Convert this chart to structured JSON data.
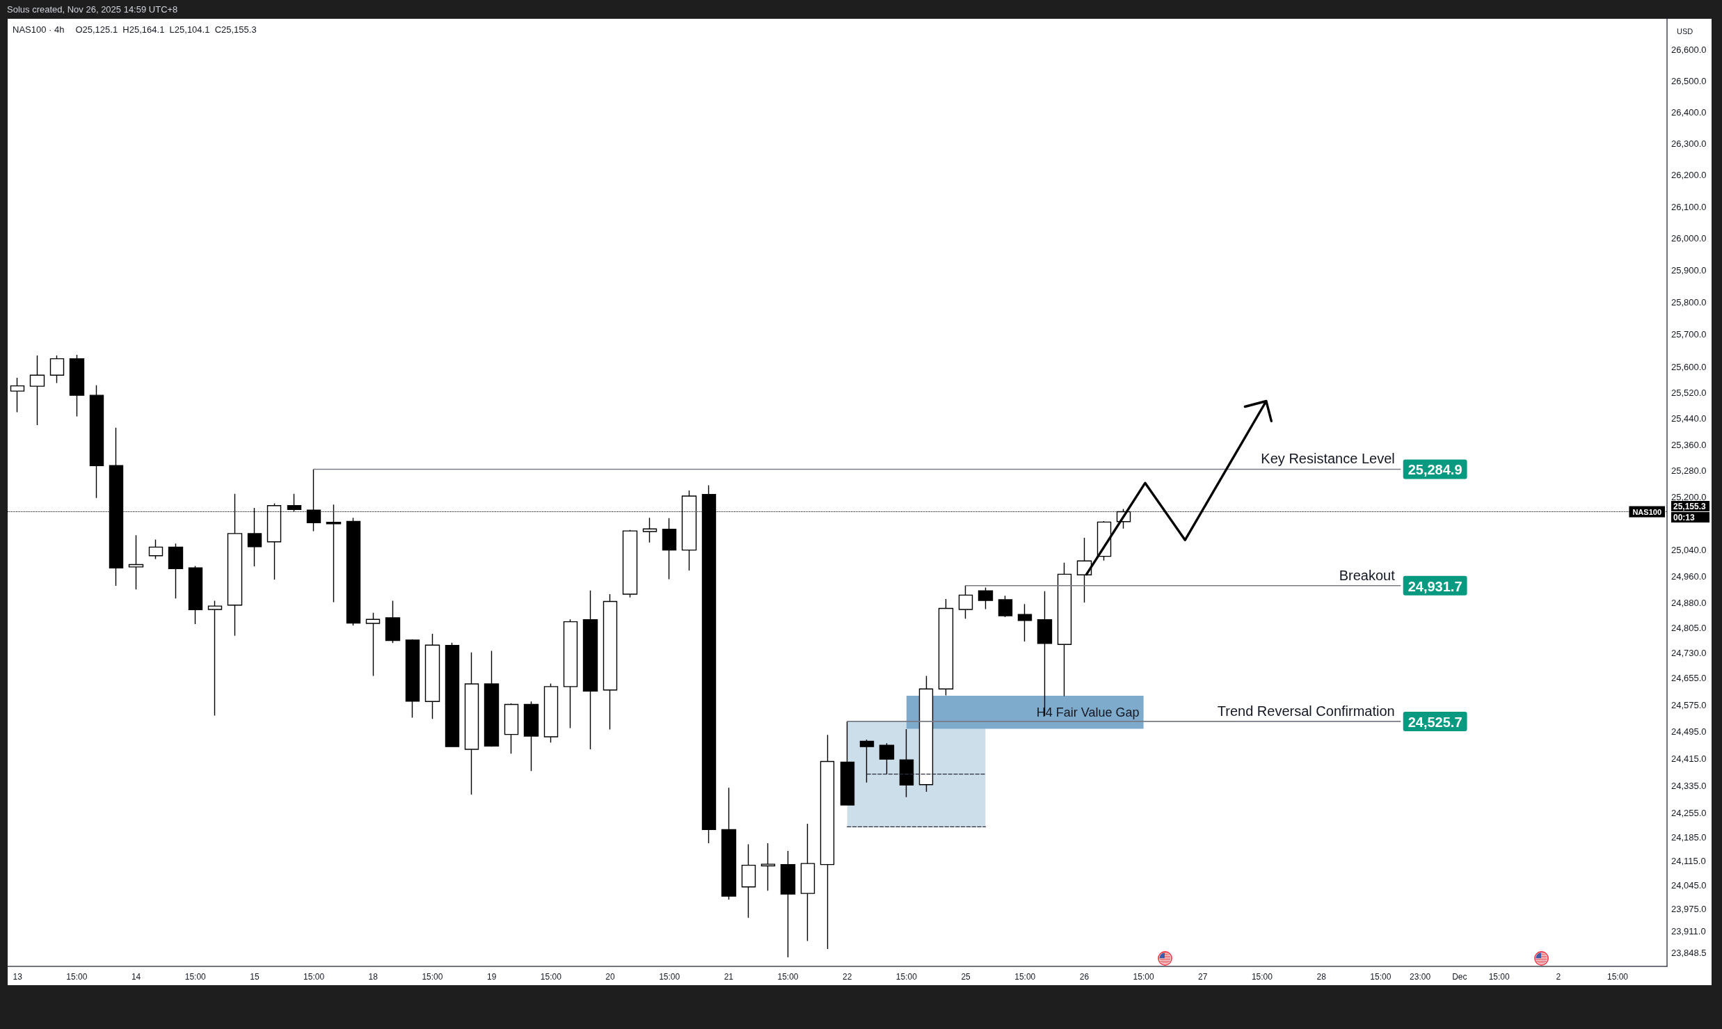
{
  "chart_data": {
    "type": "candlestick",
    "title": "NAS100 · 4h",
    "subtitle": "O25,125.1  H25,164.1  L25,104.1  C25,155.3",
    "ylabel": "USD",
    "annotations": [
      "Solus created, Nov 26, 2025 14:59 UTC+8",
      "H4 Fair Value Gap"
    ],
    "categories": [
      "13",
      null,
      null,
      "15:00",
      null,
      null,
      "14",
      null,
      null,
      "15:00",
      null,
      null,
      "15",
      null,
      null,
      "15:00",
      null,
      null,
      "18",
      null,
      null,
      "15:00",
      null,
      null,
      "19",
      null,
      null,
      "15:00",
      null,
      null,
      "20",
      null,
      null,
      "15:00",
      null,
      null,
      "21",
      null,
      null,
      "15:00",
      null,
      null,
      "22",
      null,
      null,
      "15:00",
      null,
      null,
      "25",
      null,
      null,
      "15:00",
      null,
      null,
      "26",
      null,
      null,
      "15:00",
      null,
      null,
      "27",
      null,
      null,
      "15:00",
      null,
      null,
      "28",
      null,
      null,
      "15:00",
      null,
      "23:00",
      null,
      "Dec",
      null,
      "15:00",
      null,
      null,
      "2",
      null,
      null,
      "15:00",
      null,
      null
    ],
    "ohlc": [
      [
        25525,
        25566,
        25460,
        25541
      ],
      [
        25540,
        25635,
        25420,
        25574
      ],
      [
        25574,
        25635,
        25550,
        25625
      ],
      [
        25625,
        25637,
        25447,
        25512
      ],
      [
        25512,
        25543,
        25197,
        25296
      ],
      [
        25296,
        25412,
        24931,
        24985
      ],
      [
        24988,
        25084,
        24920,
        24995
      ],
      [
        25022,
        25071,
        25012,
        25048
      ],
      [
        25048,
        25059,
        24893,
        24983
      ],
      [
        24985,
        24991,
        24816,
        24859
      ],
      [
        24860,
        24886,
        24543,
        24870
      ],
      [
        24873,
        25210,
        24781,
        25089
      ],
      [
        25089,
        25167,
        24990,
        25049
      ],
      [
        25064,
        25181,
        24950,
        25174
      ],
      [
        25174,
        25210,
        25156,
        25162
      ],
      [
        25160,
        25284.9,
        25096,
        25122
      ],
      [
        25123,
        25177,
        24882,
        25119
      ],
      [
        25126,
        25137,
        24812,
        24819
      ],
      [
        24818,
        24850,
        24661,
        24830
      ],
      [
        24835,
        24886,
        24759,
        24767
      ],
      [
        24768,
        24770,
        24537,
        24586
      ],
      [
        24585,
        24787,
        24533,
        24753
      ],
      [
        24752,
        24760,
        24451,
        24451
      ],
      [
        24443,
        24731,
        24310,
        24637
      ],
      [
        24637,
        24736,
        24451,
        24453
      ],
      [
        24487,
        24579,
        24430,
        24576
      ],
      [
        24576,
        24585,
        24379,
        24482
      ],
      [
        24480,
        24638,
        24463,
        24629
      ],
      [
        24629,
        24830,
        24506,
        24823
      ],
      [
        24829,
        24917,
        24443,
        24616
      ],
      [
        24619,
        24906,
        24502,
        24884
      ],
      [
        24906,
        25100,
        24896,
        25097
      ],
      [
        25095,
        25137,
        25062,
        25103
      ],
      [
        25102,
        25136,
        24951,
        25039
      ],
      [
        25039,
        25220,
        24977,
        25203
      ],
      [
        25208,
        25236,
        24167,
        24207
      ],
      [
        24207,
        24330,
        24003,
        24013
      ],
      [
        24040,
        24164,
        23950,
        24103
      ],
      [
        24101,
        24167,
        24029,
        24106
      ],
      [
        24105,
        24145,
        23836,
        24019
      ],
      [
        24021,
        24224,
        23883,
        24108
      ],
      [
        24105,
        24486,
        23860,
        24407
      ],
      [
        24405,
        24525.7,
        24279,
        24279
      ],
      [
        24467,
        24472,
        24345,
        24451
      ],
      [
        24455,
        24461,
        24370,
        24414
      ],
      [
        24412,
        24503,
        24302,
        24338
      ],
      [
        24339,
        24661,
        24318,
        24622
      ],
      [
        24622,
        24891,
        24603,
        24863
      ],
      [
        24860,
        24931.7,
        24832,
        24903
      ],
      [
        24916,
        24926,
        24861,
        24887
      ],
      [
        24889,
        24901,
        24837,
        24841
      ],
      [
        24845,
        24876,
        24764,
        24827
      ],
      [
        24829,
        24915,
        24542,
        24758
      ],
      [
        24755,
        25001,
        24601,
        24966
      ],
      [
        24964,
        25076,
        24881,
        25006
      ],
      [
        25020,
        25127,
        25007,
        25124
      ],
      [
        25125.1,
        25164.1,
        25104.1,
        25155.3
      ],
      null,
      null,
      null,
      null,
      null,
      null,
      null,
      null,
      null,
      null,
      null,
      null,
      null,
      null,
      null,
      null,
      null,
      null,
      null,
      null,
      null,
      null,
      null,
      null,
      null,
      null,
      null
    ],
    "color": "#000000",
    "colors": [
      "#ffffff",
      "#ffffff",
      "#ffffff",
      "#000000",
      "#000000",
      "#000000",
      "#ffffff",
      "#ffffff",
      "#000000",
      "#000000",
      "#ffffff",
      "#ffffff",
      "#000000",
      "#ffffff",
      "#000000",
      "#000000",
      "#000000",
      "#000000",
      "#ffffff",
      "#000000",
      "#000000",
      "#ffffff",
      "#000000",
      "#ffffff",
      "#000000",
      "#ffffff",
      "#000000",
      "#ffffff",
      "#ffffff",
      "#000000",
      "#ffffff",
      "#ffffff",
      "#ffffff",
      "#000000",
      "#ffffff",
      "#000000",
      "#000000",
      "#ffffff",
      "#ffffff",
      "#000000",
      "#ffffff",
      "#ffffff",
      "#000000",
      "#000000",
      "#000000",
      "#000000",
      "#ffffff",
      "#ffffff",
      "#ffffff",
      "#000000",
      "#000000",
      "#000000",
      "#000000",
      "#ffffff",
      "#ffffff",
      "#ffffff",
      "#ffffff",
      null,
      null,
      null,
      null,
      null,
      null,
      null,
      null,
      null,
      null,
      null,
      null,
      null,
      null,
      null,
      null,
      null,
      null,
      null,
      null,
      null,
      null,
      null,
      null,
      null,
      null,
      null
    ],
    "series": [
      {
        "type": "line",
        "color": "#cddeeb",
        "values": [
          null,
          null,
          null,
          null,
          null,
          null,
          null,
          null,
          null,
          null,
          null,
          null,
          null,
          null,
          null,
          null,
          null,
          null,
          null,
          null,
          null,
          null,
          null,
          null,
          null,
          null,
          null,
          null,
          null,
          null,
          null,
          null,
          null,
          null,
          null,
          null,
          null,
          null,
          null,
          null,
          null,
          null,
          null,
          null,
          null,
          null,
          null,
          null,
          null,
          null,
          null,
          null,
          null,
          null,
          null,
          null,
          null,
          null,
          null,
          null,
          null,
          null,
          null,
          null,
          null,
          null,
          null,
          null,
          null,
          null,
          null,
          null,
          null,
          null,
          null,
          null,
          null,
          null,
          null,
          null,
          null,
          null,
          null,
          null
        ],
        "lower": [
          null,
          null,
          null,
          null,
          null,
          null,
          null,
          null,
          null,
          null,
          null,
          null,
          null,
          null,
          null,
          null,
          null,
          null,
          null,
          null,
          null,
          null,
          null,
          null,
          null,
          null,
          null,
          null,
          null,
          null,
          null,
          null,
          null,
          null,
          null,
          null,
          null,
          null,
          null,
          null,
          null,
          null,
          24215,
          24215,
          24215,
          24215,
          24215,
          24215,
          24215,
          24215,
          null,
          null,
          null,
          null,
          null,
          null,
          null,
          null,
          null,
          null,
          null,
          null,
          null,
          null,
          null,
          null,
          null,
          null,
          null,
          null,
          null,
          null,
          null,
          null,
          null,
          null,
          null,
          null,
          null,
          null,
          null,
          null,
          null,
          null
        ],
        "upper": [
          null,
          null,
          null,
          null,
          null,
          null,
          null,
          null,
          null,
          null,
          null,
          null,
          null,
          null,
          null,
          null,
          null,
          null,
          null,
          null,
          null,
          null,
          null,
          null,
          null,
          null,
          null,
          null,
          null,
          null,
          null,
          null,
          null,
          null,
          null,
          null,
          null,
          null,
          null,
          null,
          null,
          null,
          24525.7,
          24525.7,
          24525.7,
          24525.7,
          24525.7,
          24525.7,
          24525.7,
          24525.7,
          null,
          null,
          null,
          null,
          null,
          null,
          null,
          null,
          null,
          null,
          null,
          null,
          null,
          null,
          null,
          null,
          null,
          null,
          null,
          null,
          null,
          null,
          null,
          null,
          null,
          null,
          null,
          null,
          null,
          null,
          null,
          null,
          null,
          null
        ]
      },
      {
        "type": "line",
        "color": "#7eabcc",
        "values": [
          null,
          null,
          null,
          null,
          null,
          null,
          null,
          null,
          null,
          null,
          null,
          null,
          null,
          null,
          null,
          null,
          null,
          null,
          null,
          null,
          null,
          null,
          null,
          null,
          null,
          null,
          null,
          null,
          null,
          null,
          null,
          null,
          null,
          null,
          null,
          null,
          null,
          null,
          null,
          null,
          null,
          null,
          null,
          null,
          null,
          null,
          null,
          null,
          null,
          null,
          null,
          null,
          null,
          null,
          null,
          null,
          null,
          null,
          null,
          null,
          null,
          null,
          null,
          null,
          null,
          null,
          null,
          null,
          null,
          null,
          null,
          null,
          null,
          null,
          null,
          null,
          null,
          null,
          null,
          null,
          null,
          null,
          null,
          null
        ],
        "lower": [
          null,
          null,
          null,
          null,
          null,
          null,
          null,
          null,
          null,
          null,
          null,
          null,
          null,
          null,
          null,
          null,
          null,
          null,
          null,
          null,
          null,
          null,
          null,
          null,
          null,
          null,
          null,
          null,
          null,
          null,
          null,
          null,
          null,
          null,
          null,
          null,
          null,
          null,
          null,
          null,
          null,
          null,
          null,
          null,
          null,
          24504,
          24504,
          24504,
          24504,
          24504,
          24504,
          24504,
          24504,
          24504,
          24504,
          24504,
          24504,
          24504,
          null,
          null,
          null,
          null,
          null,
          null,
          null,
          null,
          null,
          null,
          null,
          null,
          null,
          null,
          null,
          null,
          null,
          null,
          null,
          null,
          null,
          null,
          null,
          null,
          null,
          null
        ],
        "upper": [
          null,
          null,
          null,
          null,
          null,
          null,
          null,
          null,
          null,
          null,
          null,
          null,
          null,
          null,
          null,
          null,
          null,
          null,
          null,
          null,
          null,
          null,
          null,
          null,
          null,
          null,
          null,
          null,
          null,
          null,
          null,
          null,
          null,
          null,
          null,
          null,
          null,
          null,
          null,
          null,
          null,
          null,
          null,
          null,
          null,
          24602,
          24602,
          24602,
          24602,
          24602,
          24602,
          24602,
          24602,
          24602,
          24602,
          24602,
          24602,
          24602,
          null,
          null,
          null,
          null,
          null,
          null,
          null,
          null,
          null,
          null,
          null,
          null,
          null,
          null,
          null,
          null,
          null,
          null,
          null,
          null,
          null,
          null,
          null,
          null,
          null,
          null
        ]
      },
      {
        "type": "line",
        "color": "#2a2e39",
        "line_style": "dashed",
        "values": [
          null,
          null,
          null,
          null,
          null,
          null,
          null,
          null,
          null,
          null,
          null,
          null,
          null,
          null,
          null,
          null,
          null,
          null,
          null,
          null,
          null,
          null,
          null,
          null,
          null,
          null,
          null,
          null,
          null,
          null,
          null,
          null,
          null,
          null,
          null,
          null,
          null,
          null,
          null,
          null,
          null,
          null,
          null,
          24370,
          24370,
          24370,
          24370,
          24370,
          24370,
          24370,
          null,
          null,
          null,
          null,
          null,
          null,
          null,
          null,
          null,
          null,
          null,
          null,
          null,
          null,
          null,
          null,
          null,
          null,
          null,
          null,
          null,
          null,
          null,
          null,
          null,
          null,
          null,
          null,
          null,
          null,
          null,
          null,
          null,
          null
        ]
      },
      {
        "type": "line",
        "color": "#2a2e39",
        "line_style": "dashed",
        "values": [
          null,
          null,
          null,
          null,
          null,
          null,
          null,
          null,
          null,
          null,
          null,
          null,
          null,
          null,
          null,
          null,
          null,
          null,
          null,
          null,
          null,
          null,
          null,
          null,
          null,
          null,
          null,
          null,
          null,
          null,
          null,
          null,
          null,
          null,
          null,
          null,
          null,
          null,
          null,
          null,
          null,
          null,
          24215,
          24215,
          24215,
          24215,
          24215,
          24215,
          24215,
          24215,
          null,
          null,
          null,
          null,
          null,
          null,
          null,
          null,
          null,
          null,
          null,
          null,
          null,
          null,
          null,
          null,
          null,
          null,
          null,
          null,
          null,
          null,
          null,
          null,
          null,
          null,
          null,
          null,
          null,
          null,
          null,
          null,
          null,
          null
        ]
      },
      {
        "type": "line",
        "name": "Key Resistance Level",
        "color": "#787b86",
        "values": [
          null,
          null,
          null,
          null,
          null,
          null,
          null,
          null,
          null,
          null,
          null,
          null,
          null,
          null,
          null,
          25284.9,
          25284.9,
          25284.9,
          25284.9,
          25284.9,
          25284.9,
          25284.9,
          25284.9,
          25284.9,
          25284.9,
          25284.9,
          25284.9,
          25284.9,
          25284.9,
          25284.9,
          25284.9,
          25284.9,
          25284.9,
          25284.9,
          25284.9,
          25284.9,
          25284.9,
          25284.9,
          25284.9,
          25284.9,
          25284.9,
          25284.9,
          25284.9,
          25284.9,
          25284.9,
          25284.9,
          25284.9,
          25284.9,
          25284.9,
          25284.9,
          25284.9,
          25284.9,
          25284.9,
          25284.9,
          25284.9,
          25284.9,
          25284.9,
          25284.9,
          25284.9,
          25284.9,
          25284.9,
          25284.9,
          25284.9,
          25284.9,
          25284.9,
          25284.9,
          25284.9,
          25284.9,
          25284.9,
          25284.9,
          25284.9,
          null,
          null,
          null,
          null,
          null,
          null,
          null,
          null,
          null,
          null,
          null,
          null,
          null
        ],
        "value_labels": [
          null,
          null,
          null,
          null,
          null,
          null,
          null,
          null,
          null,
          null,
          null,
          null,
          null,
          null,
          null,
          null,
          null,
          null,
          null,
          null,
          null,
          null,
          null,
          null,
          null,
          null,
          null,
          null,
          null,
          null,
          null,
          null,
          null,
          null,
          null,
          null,
          null,
          null,
          null,
          null,
          null,
          null,
          null,
          null,
          null,
          null,
          null,
          null,
          null,
          null,
          null,
          null,
          null,
          null,
          null,
          null,
          null,
          null,
          null,
          null,
          null,
          null,
          null,
          null,
          null,
          null,
          null,
          null,
          null,
          null,
          "25,284.9",
          null,
          null,
          null,
          null,
          null,
          null,
          null,
          null,
          null,
          null,
          null,
          null,
          null
        ]
      },
      {
        "type": "line",
        "name": "Breakout",
        "color": "#787b86",
        "values": [
          null,
          null,
          null,
          null,
          null,
          null,
          null,
          null,
          null,
          null,
          null,
          null,
          null,
          null,
          null,
          null,
          null,
          null,
          null,
          null,
          null,
          null,
          null,
          null,
          null,
          null,
          null,
          null,
          null,
          null,
          null,
          null,
          null,
          null,
          null,
          null,
          null,
          null,
          null,
          null,
          null,
          null,
          null,
          null,
          null,
          null,
          null,
          null,
          24931.7,
          24931.7,
          24931.7,
          24931.7,
          24931.7,
          24931.7,
          24931.7,
          24931.7,
          24931.7,
          24931.7,
          24931.7,
          24931.7,
          24931.7,
          24931.7,
          24931.7,
          24931.7,
          24931.7,
          24931.7,
          24931.7,
          24931.7,
          24931.7,
          24931.7,
          24931.7,
          null,
          null,
          null,
          null,
          null,
          null,
          null,
          null,
          null,
          null,
          null,
          null,
          null
        ],
        "value_labels": [
          null,
          null,
          null,
          null,
          null,
          null,
          null,
          null,
          null,
          null,
          null,
          null,
          null,
          null,
          null,
          null,
          null,
          null,
          null,
          null,
          null,
          null,
          null,
          null,
          null,
          null,
          null,
          null,
          null,
          null,
          null,
          null,
          null,
          null,
          null,
          null,
          null,
          null,
          null,
          null,
          null,
          null,
          null,
          null,
          null,
          null,
          null,
          null,
          null,
          null,
          null,
          null,
          null,
          null,
          null,
          null,
          null,
          null,
          null,
          null,
          null,
          null,
          null,
          null,
          null,
          null,
          null,
          null,
          null,
          null,
          "24,931.7",
          null,
          null,
          null,
          null,
          null,
          null,
          null,
          null,
          null,
          null,
          null,
          null,
          null
        ]
      },
      {
        "type": "line",
        "name": "Trend Reversal Confirmation",
        "color": "#787b86",
        "values": [
          null,
          null,
          null,
          null,
          null,
          null,
          null,
          null,
          null,
          null,
          null,
          null,
          null,
          null,
          null,
          null,
          null,
          null,
          null,
          null,
          null,
          null,
          null,
          null,
          null,
          null,
          null,
          null,
          null,
          null,
          null,
          null,
          null,
          null,
          null,
          null,
          null,
          null,
          null,
          null,
          null,
          null,
          24525.7,
          24525.7,
          24525.7,
          24525.7,
          24525.7,
          24525.7,
          24525.7,
          24525.7,
          24525.7,
          24525.7,
          24525.7,
          24525.7,
          24525.7,
          24525.7,
          24525.7,
          24525.7,
          24525.7,
          24525.7,
          24525.7,
          24525.7,
          24525.7,
          24525.7,
          24525.7,
          24525.7,
          24525.7,
          24525.7,
          24525.7,
          24525.7,
          24525.7,
          null,
          null,
          null,
          null,
          null,
          null,
          null,
          null,
          null,
          null,
          null,
          null,
          null
        ],
        "value_labels": [
          null,
          null,
          null,
          null,
          null,
          null,
          null,
          null,
          null,
          null,
          null,
          null,
          null,
          null,
          null,
          null,
          null,
          null,
          null,
          null,
          null,
          null,
          null,
          null,
          null,
          null,
          null,
          null,
          null,
          null,
          null,
          null,
          null,
          null,
          null,
          null,
          null,
          null,
          null,
          null,
          null,
          null,
          null,
          null,
          null,
          null,
          null,
          null,
          null,
          null,
          null,
          null,
          null,
          null,
          null,
          null,
          null,
          null,
          null,
          null,
          null,
          null,
          null,
          null,
          null,
          null,
          null,
          null,
          null,
          null,
          "24,525.7",
          null,
          null,
          null,
          null,
          null,
          null,
          null,
          null,
          null,
          null,
          null,
          null,
          null
        ]
      }
    ],
    "ylim": [
      23810,
      26700
    ],
    "yticks": [
      {
        "value": 26600,
        "label": "26,600.0"
      },
      {
        "value": 26500,
        "label": "26,500.0"
      },
      {
        "value": 26400,
        "label": "26,400.0"
      },
      {
        "value": 26300,
        "label": "26,300.0"
      },
      {
        "value": 26200,
        "label": "26,200.0"
      },
      {
        "value": 26100,
        "label": "26,100.0"
      },
      {
        "value": 26000,
        "label": "26,000.0"
      },
      {
        "value": 25900,
        "label": "25,900.0"
      },
      {
        "value": 25800,
        "label": "25,800.0"
      },
      {
        "value": 25700,
        "label": "25,700.0"
      },
      {
        "value": 25600,
        "label": "25,600.0"
      },
      {
        "value": 25520,
        "label": "25,520.0"
      },
      {
        "value": 25440,
        "label": "25,440.0"
      },
      {
        "value": 25360,
        "label": "25,360.0"
      },
      {
        "value": 25280,
        "label": "25,280.0"
      },
      {
        "value": 25200,
        "label": "25,200.0"
      },
      {
        "value": 25155.3,
        "label": "25,155.3\n00:13"
      },
      {
        "value": 25040,
        "label": "25,040.0"
      },
      {
        "value": 24960,
        "label": "24,960.0"
      },
      {
        "value": 24880,
        "label": "24,880.0"
      },
      {
        "value": 24805,
        "label": "24,805.0"
      },
      {
        "value": 24730,
        "label": "24,730.0"
      },
      {
        "value": 24655,
        "label": "24,655.0"
      },
      {
        "value": 24575,
        "label": "24,575.0"
      },
      {
        "value": 24495,
        "label": "24,495.0"
      },
      {
        "value": 24415,
        "label": "24,415.0"
      },
      {
        "value": 24335,
        "label": "24,335.0"
      },
      {
        "value": 24255,
        "label": "24,255.0"
      },
      {
        "value": 24185,
        "label": "24,185.0"
      },
      {
        "value": 24115,
        "label": "24,115.0"
      },
      {
        "value": 24045,
        "label": "24,045.0"
      },
      {
        "value": 23975,
        "label": "23,975.0"
      },
      {
        "value": 23911,
        "label": "23,911.0"
      },
      {
        "value": 23848.5,
        "label": "23,848.5"
      }
    ],
    "log": "y",
    "grid": false,
    "ref_lines": [
      {
        "axis": "y",
        "value": 25155.3,
        "label": "NAS100",
        "color": "#000000",
        "line_style": "dotted"
      }
    ]
  }
}
